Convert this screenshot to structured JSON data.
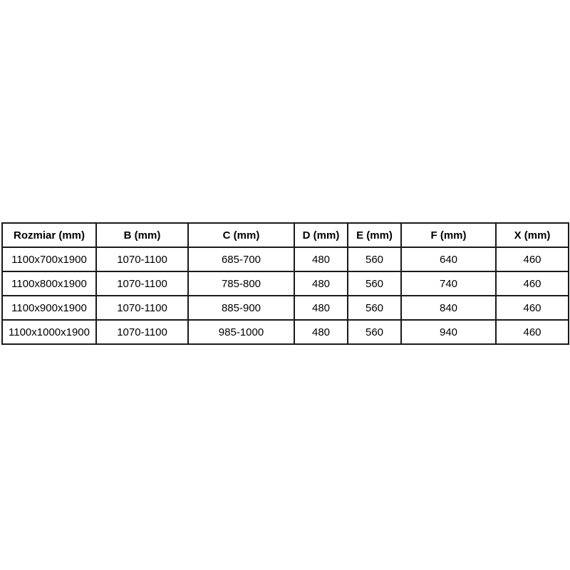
{
  "chart_data": {
    "type": "table",
    "columns": [
      "Rozmiar (mm)",
      "B (mm)",
      "C (mm)",
      "D (mm)",
      "E (mm)",
      "F (mm)",
      "X (mm)"
    ],
    "rows": [
      [
        "1100x700x1900",
        "1070-1100",
        "685-700",
        "480",
        "560",
        "640",
        "460"
      ],
      [
        "1100x800x1900",
        "1070-1100",
        "785-800",
        "480",
        "560",
        "740",
        "460"
      ],
      [
        "1100x900x1900",
        "1070-1100",
        "885-900",
        "480",
        "560",
        "840",
        "460"
      ],
      [
        "1100x1000x1900",
        "1070-1100",
        "985-1000",
        "480",
        "560",
        "940",
        "460"
      ]
    ],
    "layout": {
      "grid": true,
      "header_bold": true,
      "text_align": "center"
    }
  },
  "colors": {
    "background": "#ffffff",
    "border": "#1a1a1a",
    "text": "#000000"
  }
}
